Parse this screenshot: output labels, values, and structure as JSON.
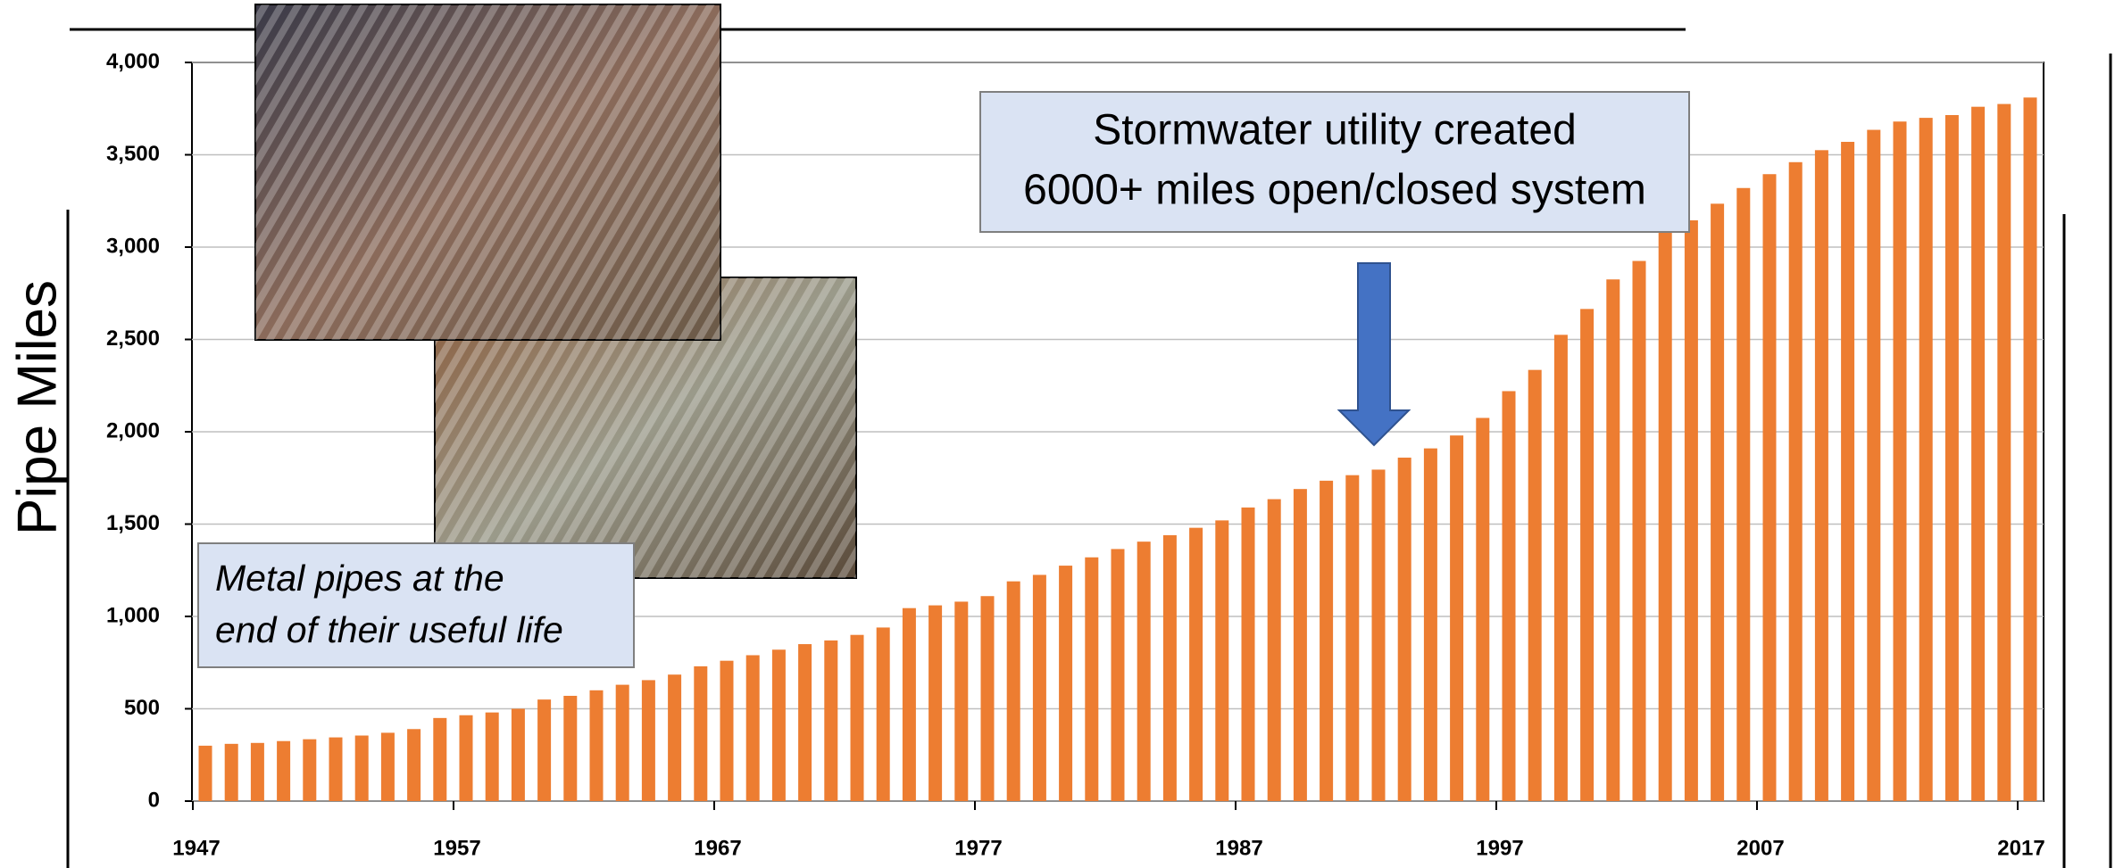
{
  "chart_data": {
    "type": "bar",
    "y_label": "Pipe Miles",
    "annotations": [
      "Stormwater utility created",
      "6000+ miles open/closed system",
      "Metal pipes at the",
      "end of their useful life"
    ],
    "categories": [
      "1947",
      null,
      null,
      null,
      null,
      null,
      null,
      null,
      null,
      null,
      "1957",
      null,
      null,
      null,
      null,
      null,
      null,
      null,
      null,
      null,
      "1967",
      null,
      null,
      null,
      null,
      null,
      null,
      null,
      null,
      null,
      "1977",
      null,
      null,
      null,
      null,
      null,
      null,
      null,
      null,
      null,
      "1987",
      null,
      null,
      null,
      null,
      null,
      null,
      null,
      null,
      null,
      "1997",
      null,
      null,
      null,
      null,
      null,
      null,
      null,
      null,
      null,
      "2007",
      null,
      null,
      null,
      null,
      null,
      null,
      null,
      null,
      null,
      "2017"
    ],
    "values": [
      300,
      310,
      315,
      325,
      335,
      345,
      355,
      370,
      390,
      450,
      465,
      480,
      500,
      550,
      570,
      600,
      630,
      655,
      685,
      730,
      760,
      790,
      820,
      850,
      870,
      900,
      940,
      1045,
      1060,
      1080,
      1110,
      1190,
      1225,
      1275,
      1320,
      1365,
      1405,
      1440,
      1480,
      1520,
      1590,
      1635,
      1690,
      1735,
      1765,
      1795,
      1860,
      1910,
      1980,
      2075,
      2220,
      2335,
      2525,
      2665,
      2825,
      2925,
      3080,
      3145,
      3235,
      3320,
      3395,
      3460,
      3525,
      3570,
      3635,
      3680,
      3700,
      3715,
      3760,
      3775,
      3810
    ],
    "color": "#ed7d31",
    "ylim": [
      0,
      4000
    ],
    "yticks": [
      0,
      500,
      {
        "value": 1000,
        "label": "1,000"
      },
      {
        "value": 1500,
        "label": "1,500"
      },
      {
        "value": 2000,
        "label": "2,000"
      },
      {
        "value": 2500,
        "label": "2,500"
      },
      {
        "value": 3000,
        "label": "3,000"
      },
      {
        "value": 3500,
        "label": "3,500"
      },
      {
        "value": 4000,
        "label": "4,000"
      }
    ],
    "grid": true
  }
}
